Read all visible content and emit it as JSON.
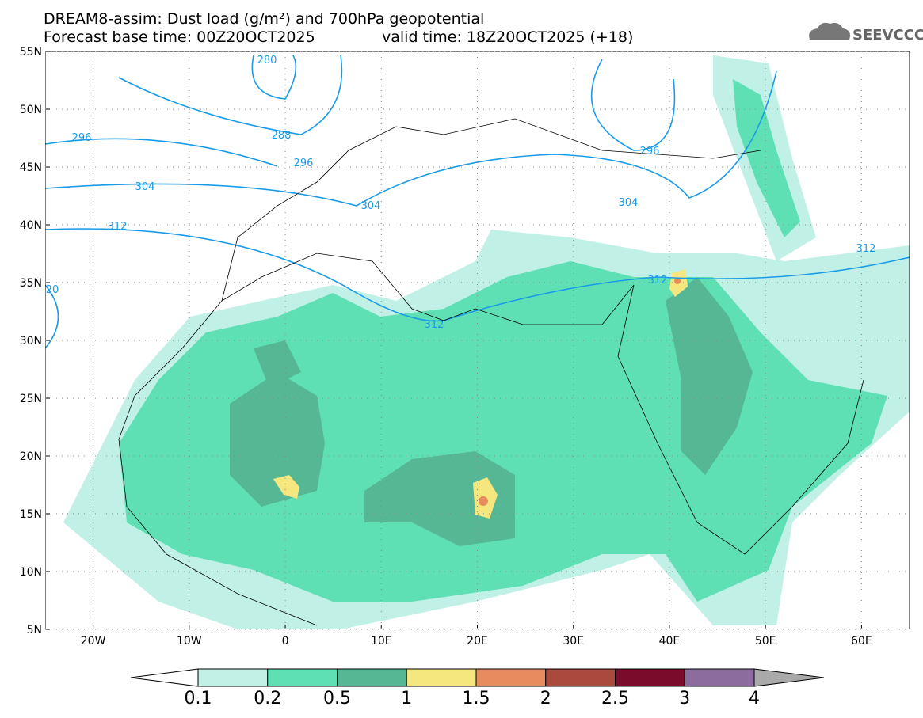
{
  "header": {
    "title": "DREAM8-assim: Dust load (g/m²) and 700hPa geopotential",
    "base_time": "Forecast base time: 00Z20OCT2025",
    "valid_time": "valid time: 18Z20OCT2025 (+18)",
    "logo": "SEEVCCC"
  },
  "map": {
    "lon_ticks": [
      "20W",
      "10W",
      "0",
      "10E",
      "20E",
      "30E",
      "40E",
      "50E",
      "60E"
    ],
    "lat_ticks": [
      "55N",
      "50N",
      "45N",
      "40N",
      "35N",
      "30N",
      "25N",
      "20N",
      "15N",
      "10N",
      "5N"
    ],
    "contour_labels": [
      "280",
      "296",
      "288",
      "296",
      "304",
      "304",
      "312",
      "312",
      "312",
      "296",
      "304",
      "312",
      "20"
    ]
  },
  "colorbar": {
    "labels": [
      "0.1",
      "0.2",
      "0.5",
      "1",
      "1.5",
      "2",
      "2.5",
      "3",
      "4"
    ],
    "colors": [
      "#c1f0e6",
      "#5fe0b4",
      "#55b793",
      "#f6e67e",
      "#e68c5f",
      "#a94a3c",
      "#7a0b2b",
      "#8c6b9f"
    ]
  }
}
